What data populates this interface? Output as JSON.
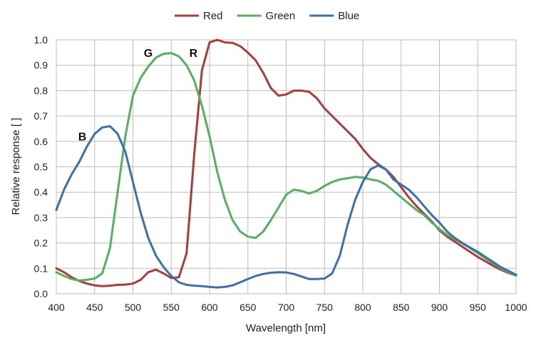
{
  "chart_data": {
    "type": "line",
    "title": "",
    "xlabel": "Wavelength [nm]",
    "ylabel": "Relative response [ ]",
    "xlim": [
      400,
      1000
    ],
    "ylim": [
      0,
      1.0
    ],
    "x_ticks": [
      "400",
      "450",
      "500",
      "550",
      "600",
      "650",
      "700",
      "750",
      "800",
      "850",
      "900",
      "950",
      "1000"
    ],
    "y_ticks": [
      "0.0",
      "0.1",
      "0.2",
      "0.3",
      "0.4",
      "0.5",
      "0.6",
      "0.7",
      "0.8",
      "0.9",
      "1.0"
    ],
    "grid": true,
    "legend_position": "top-center",
    "series": [
      {
        "name": "Red",
        "color": "#b03a3a",
        "points": [
          [
            400,
            0.1
          ],
          [
            410,
            0.085
          ],
          [
            420,
            0.065
          ],
          [
            430,
            0.05
          ],
          [
            440,
            0.04
          ],
          [
            450,
            0.033
          ],
          [
            460,
            0.03
          ],
          [
            470,
            0.032
          ],
          [
            480,
            0.035
          ],
          [
            490,
            0.036
          ],
          [
            500,
            0.04
          ],
          [
            510,
            0.055
          ],
          [
            520,
            0.085
          ],
          [
            530,
            0.095
          ],
          [
            540,
            0.08
          ],
          [
            550,
            0.062
          ],
          [
            560,
            0.065
          ],
          [
            570,
            0.16
          ],
          [
            580,
            0.55
          ],
          [
            590,
            0.88
          ],
          [
            600,
            0.99
          ],
          [
            610,
            1.0
          ],
          [
            620,
            0.99
          ],
          [
            630,
            0.988
          ],
          [
            640,
            0.975
          ],
          [
            650,
            0.95
          ],
          [
            660,
            0.92
          ],
          [
            670,
            0.87
          ],
          [
            680,
            0.81
          ],
          [
            690,
            0.78
          ],
          [
            700,
            0.785
          ],
          [
            710,
            0.8
          ],
          [
            720,
            0.8
          ],
          [
            730,
            0.795
          ],
          [
            740,
            0.77
          ],
          [
            750,
            0.73
          ],
          [
            760,
            0.7
          ],
          [
            770,
            0.67
          ],
          [
            780,
            0.64
          ],
          [
            790,
            0.61
          ],
          [
            800,
            0.57
          ],
          [
            810,
            0.535
          ],
          [
            820,
            0.51
          ],
          [
            830,
            0.49
          ],
          [
            840,
            0.46
          ],
          [
            850,
            0.42
          ],
          [
            860,
            0.38
          ],
          [
            870,
            0.345
          ],
          [
            880,
            0.315
          ],
          [
            890,
            0.285
          ],
          [
            900,
            0.25
          ],
          [
            910,
            0.225
          ],
          [
            920,
            0.205
          ],
          [
            930,
            0.185
          ],
          [
            940,
            0.165
          ],
          [
            950,
            0.145
          ],
          [
            960,
            0.128
          ],
          [
            970,
            0.11
          ],
          [
            980,
            0.095
          ],
          [
            990,
            0.082
          ],
          [
            1000,
            0.072
          ]
        ]
      },
      {
        "name": "Green",
        "color": "#55b060",
        "points": [
          [
            400,
            0.085
          ],
          [
            410,
            0.07
          ],
          [
            420,
            0.058
          ],
          [
            430,
            0.052
          ],
          [
            440,
            0.055
          ],
          [
            450,
            0.06
          ],
          [
            460,
            0.08
          ],
          [
            470,
            0.18
          ],
          [
            480,
            0.4
          ],
          [
            490,
            0.62
          ],
          [
            500,
            0.78
          ],
          [
            510,
            0.85
          ],
          [
            520,
            0.895
          ],
          [
            530,
            0.93
          ],
          [
            540,
            0.945
          ],
          [
            550,
            0.948
          ],
          [
            560,
            0.935
          ],
          [
            570,
            0.9
          ],
          [
            580,
            0.84
          ],
          [
            590,
            0.74
          ],
          [
            600,
            0.62
          ],
          [
            610,
            0.48
          ],
          [
            620,
            0.37
          ],
          [
            630,
            0.29
          ],
          [
            640,
            0.245
          ],
          [
            650,
            0.225
          ],
          [
            660,
            0.22
          ],
          [
            670,
            0.245
          ],
          [
            680,
            0.29
          ],
          [
            690,
            0.34
          ],
          [
            700,
            0.39
          ],
          [
            710,
            0.41
          ],
          [
            720,
            0.405
          ],
          [
            730,
            0.395
          ],
          [
            740,
            0.405
          ],
          [
            750,
            0.425
          ],
          [
            760,
            0.44
          ],
          [
            770,
            0.45
          ],
          [
            780,
            0.455
          ],
          [
            790,
            0.46
          ],
          [
            800,
            0.458
          ],
          [
            810,
            0.45
          ],
          [
            820,
            0.445
          ],
          [
            830,
            0.43
          ],
          [
            840,
            0.405
          ],
          [
            850,
            0.38
          ],
          [
            860,
            0.355
          ],
          [
            870,
            0.33
          ],
          [
            880,
            0.31
          ],
          [
            890,
            0.28
          ],
          [
            900,
            0.255
          ],
          [
            910,
            0.232
          ],
          [
            920,
            0.215
          ],
          [
            930,
            0.198
          ],
          [
            940,
            0.18
          ],
          [
            950,
            0.16
          ],
          [
            960,
            0.14
          ],
          [
            970,
            0.12
          ],
          [
            980,
            0.1
          ],
          [
            990,
            0.085
          ],
          [
            1000,
            0.072
          ]
        ]
      },
      {
        "name": "Blue",
        "color": "#3a6fb0",
        "points": [
          [
            400,
            0.33
          ],
          [
            410,
            0.41
          ],
          [
            420,
            0.47
          ],
          [
            430,
            0.52
          ],
          [
            440,
            0.58
          ],
          [
            450,
            0.63
          ],
          [
            460,
            0.655
          ],
          [
            470,
            0.66
          ],
          [
            480,
            0.63
          ],
          [
            490,
            0.56
          ],
          [
            500,
            0.44
          ],
          [
            510,
            0.32
          ],
          [
            520,
            0.22
          ],
          [
            530,
            0.15
          ],
          [
            540,
            0.105
          ],
          [
            550,
            0.07
          ],
          [
            560,
            0.045
          ],
          [
            570,
            0.035
          ],
          [
            580,
            0.032
          ],
          [
            590,
            0.03
          ],
          [
            600,
            0.027
          ],
          [
            610,
            0.025
          ],
          [
            620,
            0.027
          ],
          [
            630,
            0.033
          ],
          [
            640,
            0.045
          ],
          [
            650,
            0.058
          ],
          [
            660,
            0.07
          ],
          [
            670,
            0.078
          ],
          [
            680,
            0.083
          ],
          [
            690,
            0.085
          ],
          [
            700,
            0.084
          ],
          [
            710,
            0.078
          ],
          [
            720,
            0.068
          ],
          [
            730,
            0.058
          ],
          [
            740,
            0.058
          ],
          [
            750,
            0.06
          ],
          [
            760,
            0.08
          ],
          [
            770,
            0.15
          ],
          [
            780,
            0.27
          ],
          [
            790,
            0.37
          ],
          [
            800,
            0.44
          ],
          [
            810,
            0.49
          ],
          [
            820,
            0.505
          ],
          [
            830,
            0.49
          ],
          [
            840,
            0.45
          ],
          [
            850,
            0.43
          ],
          [
            860,
            0.41
          ],
          [
            870,
            0.38
          ],
          [
            880,
            0.345
          ],
          [
            890,
            0.31
          ],
          [
            900,
            0.28
          ],
          [
            910,
            0.245
          ],
          [
            920,
            0.22
          ],
          [
            930,
            0.2
          ],
          [
            940,
            0.182
          ],
          [
            950,
            0.165
          ],
          [
            960,
            0.145
          ],
          [
            970,
            0.125
          ],
          [
            980,
            0.105
          ],
          [
            990,
            0.09
          ],
          [
            1000,
            0.075
          ]
        ]
      }
    ],
    "annotations": [
      {
        "text": "B",
        "x": 434,
        "y": 0.62
      },
      {
        "text": "G",
        "x": 520,
        "y": 0.95
      },
      {
        "text": "R",
        "x": 579,
        "y": 0.95
      }
    ]
  }
}
